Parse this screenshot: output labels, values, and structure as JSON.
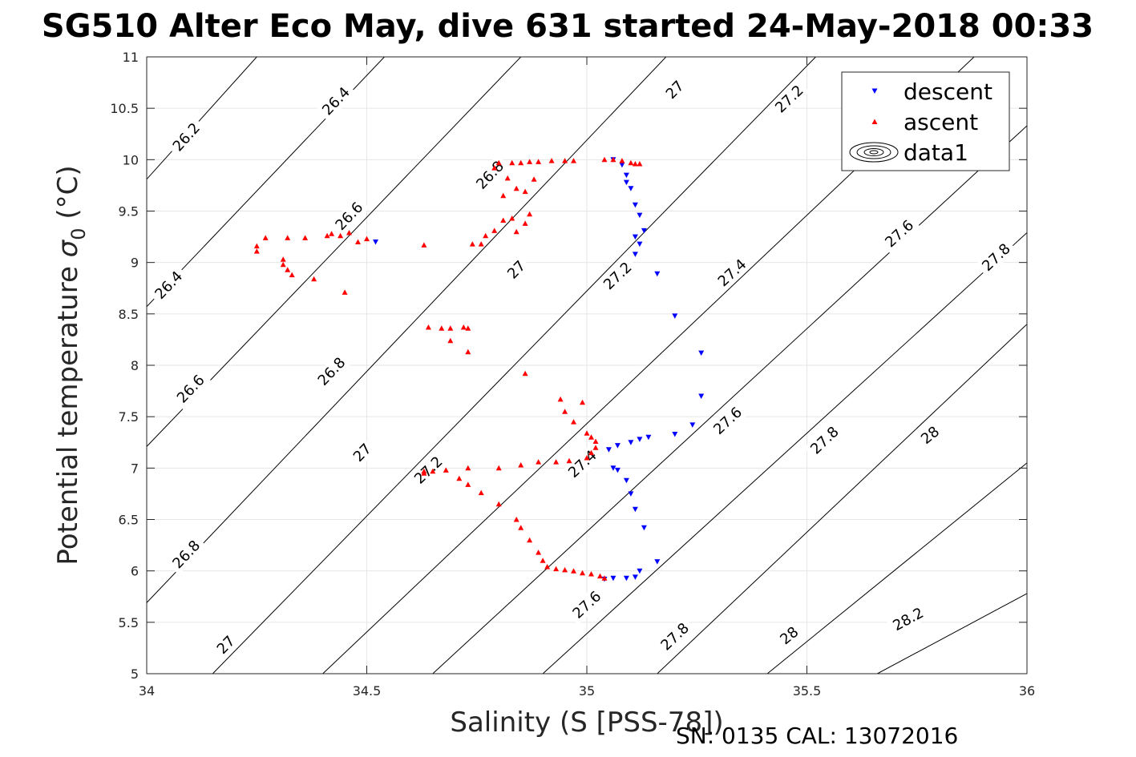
{
  "title": "SG510 Alter Eco May, dive 631 started 24-May-2018 00:33",
  "footer": "SN: 0135  CAL: 13072016",
  "chart_data": {
    "type": "scatter",
    "xlabel": "Salinity (S [PSS-78])",
    "ylabel_main": "Potential temperature ",
    "ylabel_sigma": "σ",
    "ylabel_sub": "0",
    "ylabel_unit": " (°C)",
    "xlim": [
      34,
      36
    ],
    "ylim": [
      5,
      11
    ],
    "xticks": [
      34,
      34.5,
      35,
      35.5,
      36
    ],
    "xtick_labels": [
      "34",
      "34.5",
      "35",
      "35.5",
      "36"
    ],
    "yticks": [
      5,
      5.5,
      6,
      6.5,
      7,
      7.5,
      8,
      8.5,
      9,
      9.5,
      10,
      10.5,
      11
    ],
    "ytick_labels": [
      "5",
      "5.5",
      "6",
      "6.5",
      "7",
      "7.5",
      "8",
      "8.5",
      "9",
      "9.5",
      "10",
      "10.5",
      "11"
    ],
    "grid": true,
    "legend": {
      "position": "top-right",
      "entries": [
        {
          "label": "descent",
          "marker": "triangle-down",
          "color": "#0000ff"
        },
        {
          "label": "ascent",
          "marker": "triangle-up",
          "color": "#ff0000"
        },
        {
          "label": "data1",
          "marker": "contour",
          "color": "#000000"
        }
      ]
    },
    "contours": [
      {
        "level": 26.2,
        "points": [
          [
            34.0,
            9.81
          ],
          [
            34.25,
            11.0
          ]
        ],
        "labels": [
          {
            "text": "26.2",
            "x": 34.09,
            "y": 10.22
          }
        ]
      },
      {
        "level": 26.4,
        "points": [
          [
            34.0,
            8.57
          ],
          [
            34.54,
            11.0
          ]
        ],
        "labels": [
          {
            "text": "26.4",
            "x": 34.05,
            "y": 8.78
          },
          {
            "text": "26.4",
            "x": 34.43,
            "y": 10.57
          }
        ]
      },
      {
        "level": 26.6,
        "points": [
          [
            34.0,
            7.21
          ],
          [
            34.85,
            11.0
          ]
        ],
        "labels": [
          {
            "text": "26.6",
            "x": 34.1,
            "y": 7.77
          },
          {
            "text": "26.6",
            "x": 34.46,
            "y": 9.45
          }
        ]
      },
      {
        "level": 26.8,
        "points": [
          [
            34.0,
            5.69
          ],
          [
            35.18,
            11.0
          ]
        ],
        "labels": [
          {
            "text": "26.8",
            "x": 34.09,
            "y": 6.16
          },
          {
            "text": "26.8",
            "x": 34.42,
            "y": 7.94
          },
          {
            "text": "26.8",
            "x": 34.78,
            "y": 9.85
          }
        ]
      },
      {
        "level": 27.0,
        "points": [
          [
            34.15,
            5.0
          ],
          [
            35.52,
            11.0
          ]
        ],
        "labels": [
          {
            "text": "27",
            "x": 34.18,
            "y": 5.28
          },
          {
            "text": "27",
            "x": 34.49,
            "y": 7.15
          },
          {
            "text": "27",
            "x": 34.84,
            "y": 8.93
          },
          {
            "text": "27",
            "x": 35.2,
            "y": 10.68
          }
        ]
      },
      {
        "level": 27.2,
        "points": [
          [
            34.4,
            5.0
          ],
          [
            35.88,
            11.0
          ]
        ],
        "labels": [
          {
            "text": "27.2",
            "x": 34.64,
            "y": 6.98
          },
          {
            "text": "27.2",
            "x": 35.07,
            "y": 8.87
          },
          {
            "text": "27.2",
            "x": 35.46,
            "y": 10.59
          }
        ]
      },
      {
        "level": 27.4,
        "points": [
          [
            34.65,
            5.0
          ],
          [
            36.0,
            10.33
          ]
        ],
        "labels": [
          {
            "text": "27.4",
            "x": 34.99,
            "y": 7.04
          },
          {
            "text": "27.4",
            "x": 35.33,
            "y": 8.9
          }
        ]
      },
      {
        "level": 27.6,
        "points": [
          [
            34.9,
            5.0
          ],
          [
            36.0,
            9.29
          ]
        ],
        "labels": [
          {
            "text": "27.6",
            "x": 35.0,
            "y": 5.67
          },
          {
            "text": "27.6",
            "x": 35.32,
            "y": 7.46
          },
          {
            "text": "27.6",
            "x": 35.71,
            "y": 9.28
          }
        ]
      },
      {
        "level": 27.8,
        "points": [
          [
            35.16,
            5.0
          ],
          [
            36.0,
            8.4
          ]
        ],
        "labels": [
          {
            "text": "27.8",
            "x": 35.2,
            "y": 5.36
          },
          {
            "text": "27.8",
            "x": 35.54,
            "y": 7.27
          },
          {
            "text": "27.8",
            "x": 35.93,
            "y": 9.05
          }
        ]
      },
      {
        "level": 28.0,
        "points": [
          [
            35.41,
            5.0
          ],
          [
            36.0,
            7.05
          ]
        ],
        "labels": [
          {
            "text": "28",
            "x": 35.46,
            "y": 5.37
          },
          {
            "text": "28",
            "x": 35.78,
            "y": 7.32
          }
        ]
      },
      {
        "level": 28.2,
        "points": [
          [
            35.66,
            5.0
          ],
          [
            36.0,
            5.78
          ]
        ],
        "labels": [
          {
            "text": "28.2",
            "x": 35.73,
            "y": 5.53
          }
        ]
      }
    ],
    "series": [
      {
        "name": "descent",
        "color": "#0000ff",
        "marker": "triangle-down",
        "points": [
          [
            34.52,
            9.2
          ],
          [
            35.06,
            10.0
          ],
          [
            35.08,
            9.95
          ],
          [
            35.09,
            9.85
          ],
          [
            35.09,
            9.78
          ],
          [
            35.1,
            9.72
          ],
          [
            35.11,
            9.56
          ],
          [
            35.12,
            9.46
          ],
          [
            35.13,
            9.31
          ],
          [
            35.11,
            9.25
          ],
          [
            35.12,
            9.18
          ],
          [
            35.11,
            9.08
          ],
          [
            35.16,
            8.89
          ],
          [
            35.2,
            8.48
          ],
          [
            35.26,
            8.12
          ],
          [
            35.26,
            7.7
          ],
          [
            35.24,
            7.42
          ],
          [
            35.2,
            7.33
          ],
          [
            35.14,
            7.3
          ],
          [
            35.12,
            7.28
          ],
          [
            35.1,
            7.25
          ],
          [
            35.07,
            7.22
          ],
          [
            35.05,
            7.18
          ],
          [
            35.06,
            7.0
          ],
          [
            35.07,
            6.98
          ],
          [
            35.09,
            6.88
          ],
          [
            35.1,
            6.75
          ],
          [
            35.11,
            6.6
          ],
          [
            35.13,
            6.42
          ],
          [
            35.16,
            6.09
          ],
          [
            35.12,
            6.0
          ],
          [
            35.11,
            5.94
          ],
          [
            35.09,
            5.93
          ],
          [
            35.06,
            5.93
          ],
          [
            35.04,
            5.92
          ]
        ]
      },
      {
        "name": "ascent",
        "color": "#ff0000",
        "marker": "triangle-up",
        "points": [
          [
            34.25,
            9.16
          ],
          [
            34.25,
            9.11
          ],
          [
            34.27,
            9.24
          ],
          [
            34.31,
            9.03
          ],
          [
            34.31,
            8.98
          ],
          [
            34.32,
            8.93
          ],
          [
            34.33,
            8.88
          ],
          [
            34.32,
            9.24
          ],
          [
            34.36,
            9.24
          ],
          [
            34.38,
            8.84
          ],
          [
            34.41,
            9.26
          ],
          [
            34.42,
            9.28
          ],
          [
            34.44,
            9.26
          ],
          [
            34.45,
            8.71
          ],
          [
            34.46,
            9.29
          ],
          [
            34.48,
            9.2
          ],
          [
            34.5,
            9.23
          ],
          [
            34.63,
            9.17
          ],
          [
            34.74,
            9.18
          ],
          [
            34.76,
            9.18
          ],
          [
            34.77,
            9.26
          ],
          [
            34.79,
            9.31
          ],
          [
            34.81,
            9.41
          ],
          [
            34.83,
            9.43
          ],
          [
            34.84,
            9.3
          ],
          [
            34.86,
            9.38
          ],
          [
            34.87,
            9.47
          ],
          [
            34.81,
            9.65
          ],
          [
            34.82,
            9.82
          ],
          [
            34.84,
            9.72
          ],
          [
            34.86,
            9.69
          ],
          [
            34.88,
            9.81
          ],
          [
            34.79,
            9.92
          ],
          [
            34.8,
            9.97
          ],
          [
            34.83,
            9.97
          ],
          [
            34.85,
            9.97
          ],
          [
            34.87,
            9.98
          ],
          [
            34.89,
            9.98
          ],
          [
            34.92,
            9.99
          ],
          [
            34.95,
            9.99
          ],
          [
            34.97,
            9.99
          ],
          [
            35.04,
            10.0
          ],
          [
            35.06,
            10.0
          ],
          [
            35.08,
            9.99
          ],
          [
            35.1,
            9.97
          ],
          [
            35.11,
            9.96
          ],
          [
            35.12,
            9.96
          ],
          [
            34.64,
            8.37
          ],
          [
            34.67,
            8.36
          ],
          [
            34.69,
            8.36
          ],
          [
            34.72,
            8.37
          ],
          [
            34.73,
            8.36
          ],
          [
            34.73,
            8.13
          ],
          [
            34.69,
            8.24
          ],
          [
            34.86,
            7.92
          ],
          [
            34.94,
            7.67
          ],
          [
            34.95,
            7.55
          ],
          [
            34.97,
            7.45
          ],
          [
            34.99,
            7.64
          ],
          [
            35.0,
            7.34
          ],
          [
            35.01,
            7.3
          ],
          [
            35.02,
            7.26
          ],
          [
            35.02,
            7.2
          ],
          [
            35.01,
            7.15
          ],
          [
            35.0,
            7.1
          ],
          [
            34.96,
            7.07
          ],
          [
            34.93,
            7.06
          ],
          [
            34.89,
            7.06
          ],
          [
            34.85,
            7.03
          ],
          [
            34.8,
            7.0
          ],
          [
            34.73,
            7.0
          ],
          [
            34.68,
            6.98
          ],
          [
            34.65,
            6.97
          ],
          [
            34.63,
            6.97
          ],
          [
            34.63,
            6.95
          ],
          [
            34.71,
            6.9
          ],
          [
            34.73,
            6.84
          ],
          [
            34.76,
            6.76
          ],
          [
            34.8,
            6.65
          ],
          [
            34.84,
            6.5
          ],
          [
            34.85,
            6.42
          ],
          [
            34.87,
            6.3
          ],
          [
            34.89,
            6.18
          ],
          [
            34.9,
            6.1
          ],
          [
            34.91,
            6.04
          ],
          [
            34.93,
            6.02
          ],
          [
            34.95,
            6.01
          ],
          [
            34.97,
            6.0
          ],
          [
            34.99,
            5.98
          ],
          [
            35.01,
            5.97
          ],
          [
            35.03,
            5.95
          ],
          [
            35.04,
            5.93
          ]
        ]
      }
    ]
  }
}
